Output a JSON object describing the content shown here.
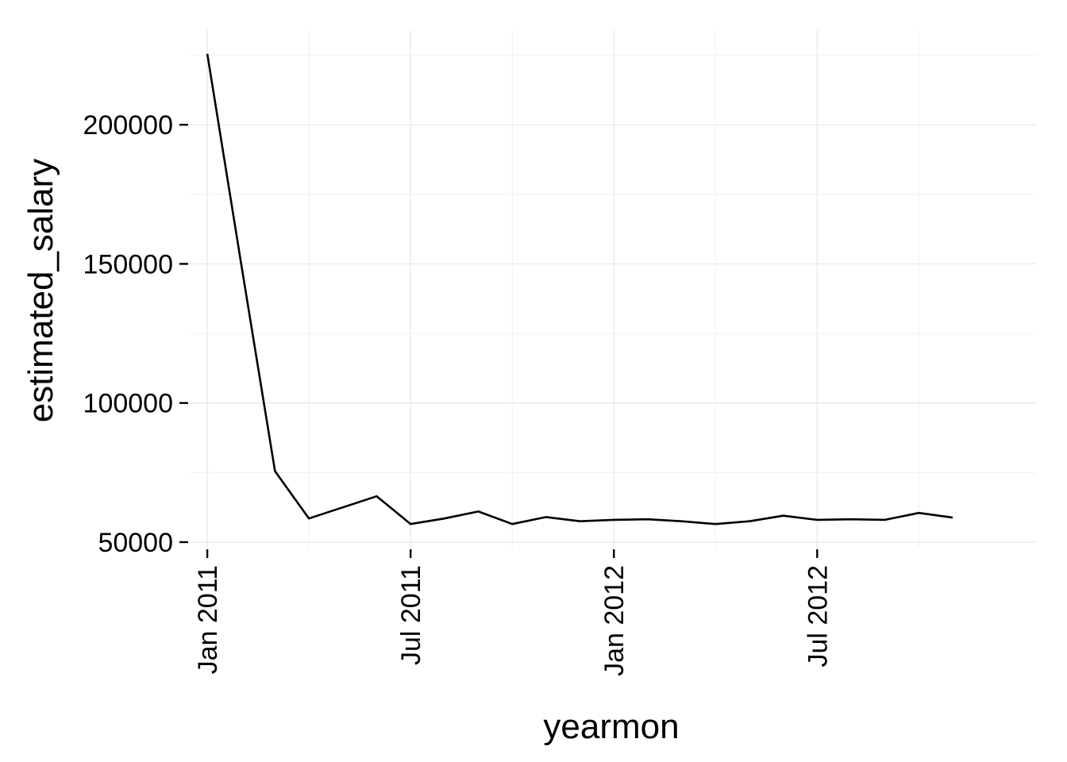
{
  "chart_data": {
    "type": "line",
    "title": "",
    "xlabel": "yearmon",
    "ylabel": "estimated_salary",
    "x": [
      "2011-01",
      "2011-02",
      "2011-03",
      "2011-04",
      "2011-05",
      "2011-06",
      "2011-07",
      "2011-08",
      "2011-09",
      "2011-10",
      "2011-11",
      "2011-12",
      "2012-01",
      "2012-02",
      "2012-03",
      "2012-04",
      "2012-05",
      "2012-06",
      "2012-07",
      "2012-08",
      "2012-09",
      "2012-10",
      "2012-11"
    ],
    "series": [
      {
        "values": [
          225500,
          150000,
          75500,
          58500,
          62500,
          66500,
          56500,
          58500,
          61000,
          56500,
          59000,
          57500,
          58000,
          58200,
          57500,
          56500,
          57500,
          59500,
          58000,
          58200,
          58000,
          60500,
          58800
        ]
      }
    ],
    "ylim": [
      48000,
      234000
    ],
    "xlim": [
      "2010-12-15",
      "2013-01-15"
    ],
    "y_ticks": [
      50000,
      100000,
      150000,
      200000
    ],
    "y_tick_labels": [
      "50000",
      "100000",
      "150000",
      "200000"
    ],
    "y_minor_ticks": [
      75000,
      125000,
      175000,
      225000
    ],
    "x_ticks": [
      "2011-01",
      "2011-07",
      "2012-01",
      "2012-07"
    ],
    "x_tick_labels": [
      "Jan 2011",
      "Jul 2011",
      "Jan 2012",
      "Jul 2012"
    ],
    "x_minor_ticks": [
      "2011-04",
      "2011-10",
      "2012-04",
      "2012-10"
    ],
    "grid": true,
    "legend": "none"
  }
}
